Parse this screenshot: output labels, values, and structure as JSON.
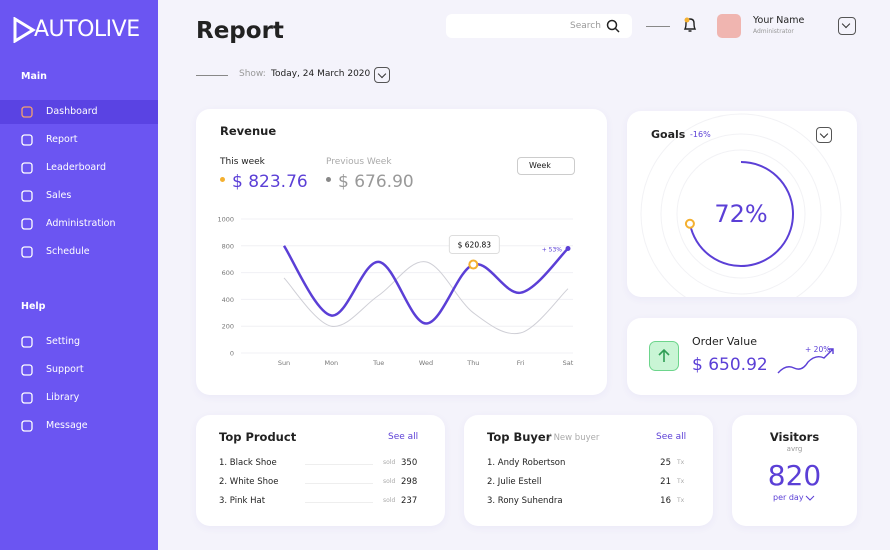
{
  "brand": "AUTOLIVE",
  "sidebar": {
    "sections": [
      {
        "title": "Main",
        "items": [
          "Dashboard",
          "Report",
          "Leaderboard",
          "Sales",
          "Administration",
          "Schedule"
        ]
      },
      {
        "title": "Help",
        "items": [
          "Setting",
          "Support",
          "Library",
          "Message"
        ]
      }
    ]
  },
  "header": {
    "title": "Report",
    "search": "Search",
    "user_name": "Your Name",
    "user_role": "Administrator",
    "show_label": "Show:",
    "date": "Today, 24 March 2020"
  },
  "revenue": {
    "title": "Revenue",
    "this_week_label": "This week",
    "this_week_value": "$ 823.76",
    "previous_label": "Previous Week",
    "previous_value": "$ 676.90",
    "period": "Week",
    "tooltip": "$ 620.83",
    "change": "+ 53%"
  },
  "chart_data": {
    "type": "line",
    "categories": [
      "Sun",
      "Mon",
      "Tue",
      "Wed",
      "Thu",
      "Fri",
      "Sat"
    ],
    "series": [
      {
        "name": "This week",
        "color": "#5b3fd6",
        "values": [
          800,
          280,
          680,
          220,
          660,
          450,
          780
        ]
      },
      {
        "name": "Previous Week",
        "color": "#cfcfd6",
        "values": [
          560,
          200,
          430,
          680,
          300,
          150,
          480
        ]
      }
    ],
    "ylim": [
      0,
      1000
    ],
    "yticks": [
      0,
      200,
      400,
      600,
      800,
      1000
    ],
    "grid": true
  },
  "goals": {
    "title": "Goals",
    "change": "-16%",
    "value": 72,
    "value_label": "72%"
  },
  "order": {
    "title": "Order Value",
    "value": "$ 650.92",
    "change": "+ 20%"
  },
  "top_product": {
    "title": "Top Product",
    "see_all": "See all",
    "unit": "sold",
    "rows": [
      [
        "1. Black Shoe",
        350
      ],
      [
        "2. White Shoe",
        298
      ],
      [
        "3. Pink Hat",
        237
      ]
    ]
  },
  "top_buyer": {
    "title": "Top Buyer",
    "subtitle": "/ New buyer",
    "see_all": "See all",
    "unit": "Tx",
    "rows": [
      [
        "1. Andy Robertson",
        25
      ],
      [
        "2. Julie Estell",
        21
      ],
      [
        "3. Rony Suhendra",
        16
      ]
    ]
  },
  "visitors": {
    "title": "Visitors",
    "subtitle": "avrg",
    "value": 820,
    "period": "per day"
  }
}
